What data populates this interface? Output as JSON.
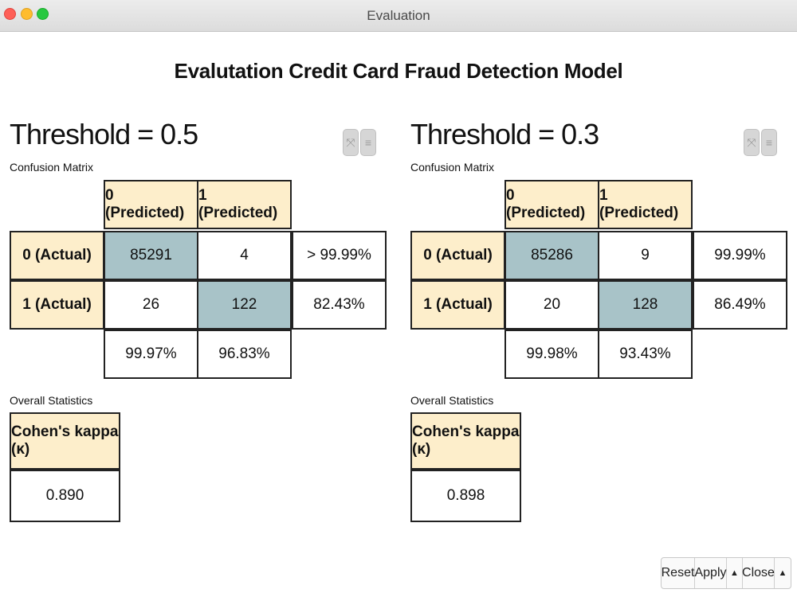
{
  "window": {
    "title": "Evaluation"
  },
  "page": {
    "title": "Evalutation Credit Card Fraud Detection Model"
  },
  "panels": [
    {
      "threshold": "Threshold = 0.5",
      "cm_label": "Confusion Matrix",
      "col_headers": [
        "0 (Predicted)",
        "1 (Predicted)"
      ],
      "rows": [
        {
          "label": "0 (Actual)",
          "values": [
            "85291",
            "4"
          ],
          "rate": "> 99.99%"
        },
        {
          "label": "1 (Actual)",
          "values": [
            "26",
            "122"
          ],
          "rate": "82.43%"
        }
      ],
      "col_rates": [
        "99.97%",
        "96.83%"
      ],
      "stats_label": "Overall Statistics",
      "kappa_header": "Cohen's kappa (κ)",
      "kappa_value": "0.890"
    },
    {
      "threshold": "Threshold = 0.3",
      "cm_label": "Confusion Matrix",
      "col_headers": [
        "0 (Predicted)",
        "1 (Predicted)"
      ],
      "rows": [
        {
          "label": "0 (Actual)",
          "values": [
            "85286",
            "9"
          ],
          "rate": "99.99%"
        },
        {
          "label": "1 (Actual)",
          "values": [
            "20",
            "128"
          ],
          "rate": "86.49%"
        }
      ],
      "col_rates": [
        "99.98%",
        "93.43%"
      ],
      "stats_label": "Overall Statistics",
      "kappa_header": "Cohen's kappa (κ)",
      "kappa_value": "0.898"
    }
  ],
  "icons": {
    "expand": "expand-icon",
    "menu": "menu-icon",
    "up": "up-arrow-icon"
  },
  "colors": {
    "header_bg": "#fdeecb",
    "diagonal_bg": "#a8c3c8"
  },
  "buttons": {
    "reset": "Reset",
    "apply": "Apply",
    "close": "Close"
  }
}
